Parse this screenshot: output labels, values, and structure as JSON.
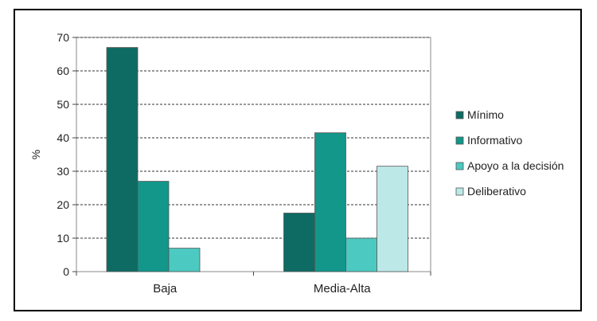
{
  "chart_data": {
    "type": "bar",
    "ylabel": "%",
    "xlabel": "",
    "ylim": [
      0,
      70
    ],
    "yticks": [
      0,
      10,
      20,
      30,
      40,
      50,
      60,
      70
    ],
    "grid": "horizontal dashed",
    "legend_position": "right",
    "categories": [
      "Baja",
      "Media-Alta"
    ],
    "series": [
      {
        "name": "Mínimo",
        "color": "#0e6b63",
        "values": [
          67,
          17.5
        ]
      },
      {
        "name": "Informativo",
        "color": "#12978a",
        "values": [
          27,
          41.5
        ]
      },
      {
        "name": "Apoyo a la decisión",
        "color": "#4cc9c1",
        "values": [
          7,
          10
        ]
      },
      {
        "name": "Deliberativo",
        "color": "#bde8e8",
        "values": [
          null,
          31.5
        ]
      }
    ]
  }
}
